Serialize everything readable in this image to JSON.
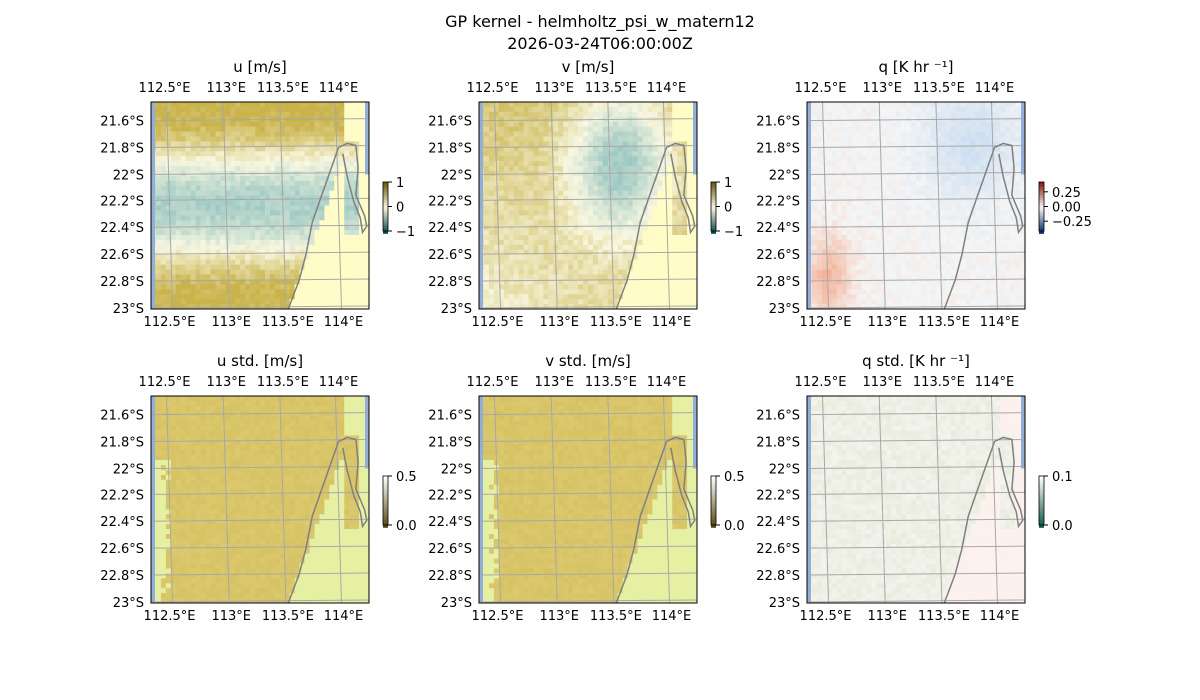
{
  "figure": {
    "title": "GP kernel - helmholtz_psi_w_matern12",
    "subtitle": "2026-03-24T06:00:00Z"
  },
  "colors": {
    "frame": "#000000",
    "grid": "#a8a8a8",
    "coastline": "#808080",
    "water_edge": "#93aed9",
    "land": "#fffcc7",
    "land_std": "#e6f0a3",
    "wind_pos": "#c9b34a",
    "wind_neg": "#9cc8c3",
    "wind_mid": "#f8f7e0",
    "std_fill": "#d9c66a",
    "heat_pos": "#f3a383",
    "heat_neg": "#b7d3ef",
    "heat_mid": "#f5f5f5",
    "heatstd_fill": "#e5ead8"
  },
  "axes_ticks": {
    "lon_labels": [
      "112.5°E",
      "113°E",
      "113.5°E",
      "114°E"
    ],
    "lat_labels": [
      "21.6°S",
      "21.8°S",
      "22°S",
      "22.2°S",
      "22.4°S",
      "22.6°S",
      "22.8°S",
      "23°S"
    ]
  },
  "chart_data": [
    {
      "type": "heatmap",
      "title": "u [m/s]",
      "field": "wind",
      "pattern": "bands",
      "colorbar": {
        "ticks": [
          "1",
          "0",
          "−1"
        ],
        "range": [
          -1,
          1
        ]
      },
      "lon_range": [
        112.45,
        114.25
      ],
      "lat_range": [
        -23.0,
        -21.5
      ]
    },
    {
      "type": "heatmap",
      "title": "v [m/s]",
      "field": "wind",
      "pattern": "blob",
      "colorbar": {
        "ticks": [
          "1",
          "0",
          "−1"
        ],
        "range": [
          -1,
          1
        ]
      },
      "lon_range": [
        112.45,
        114.25
      ],
      "lat_range": [
        -23.0,
        -21.5
      ]
    },
    {
      "type": "heatmap",
      "title": "q [K hr ⁻¹]",
      "field": "heat",
      "pattern": "weak",
      "colorbar": {
        "ticks": [
          "0.25",
          "0.00",
          "−0.25"
        ],
        "range": [
          -0.4,
          0.4
        ]
      },
      "lon_range": [
        112.45,
        114.25
      ],
      "lat_range": [
        -23.0,
        -21.5
      ]
    },
    {
      "type": "heatmap",
      "title": "u std. [m/s]",
      "field": "wind_std",
      "pattern": "uniform",
      "colorbar": {
        "ticks": [
          "0.5",
          "0.0"
        ],
        "range": [
          0,
          0.6
        ]
      },
      "lon_range": [
        112.45,
        114.25
      ],
      "lat_range": [
        -23.0,
        -21.5
      ]
    },
    {
      "type": "heatmap",
      "title": "v std. [m/s]",
      "field": "wind_std",
      "pattern": "uniform",
      "colorbar": {
        "ticks": [
          "0.5",
          "0.0"
        ],
        "range": [
          0,
          0.6
        ]
      },
      "lon_range": [
        112.45,
        114.25
      ],
      "lat_range": [
        -23.0,
        -21.5
      ]
    },
    {
      "type": "heatmap",
      "title": "q std. [K hr ⁻¹]",
      "field": "heat_std",
      "pattern": "faint",
      "colorbar": {
        "ticks": [
          "0.1",
          "0.0"
        ],
        "range": [
          0,
          0.12
        ]
      },
      "lon_range": [
        112.45,
        114.25
      ],
      "lat_range": [
        -23.0,
        -21.5
      ]
    }
  ]
}
